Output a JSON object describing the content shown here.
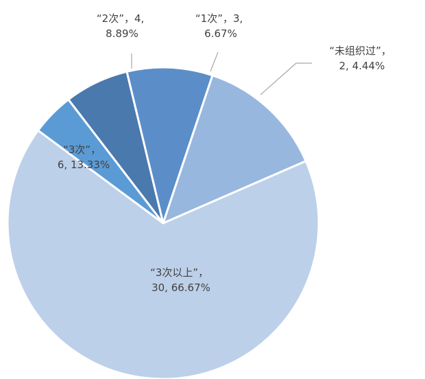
{
  "chart_data": {
    "type": "pie",
    "categories": [
      "“3次以上”",
      "“未组织过”",
      "“1次”",
      "“2次”",
      "“3次”"
    ],
    "values": [
      30,
      2,
      3,
      4,
      6
    ],
    "percents": [
      "66.67%",
      "4.44%",
      "6.67%",
      "8.89%",
      "13.33%"
    ],
    "data_labels": [
      {
        "line1": "“3次以上”，",
        "line2": "30, 66.67%"
      },
      {
        "line1": "“未组织过”，",
        "line2": "2, 4.44%"
      },
      {
        "line1": "“1次”，3,",
        "line2": "6.67%"
      },
      {
        "line1": "“2次”，4,",
        "line2": "8.89%"
      },
      {
        "line1": "“3次”，",
        "line2": "6, 13.33%"
      }
    ],
    "colors": [
      "#bdd0e9",
      "#5b9bd5",
      "#4a79ad",
      "#5b8ec9",
      "#98b7df"
    ],
    "title": "",
    "legend": "none"
  }
}
